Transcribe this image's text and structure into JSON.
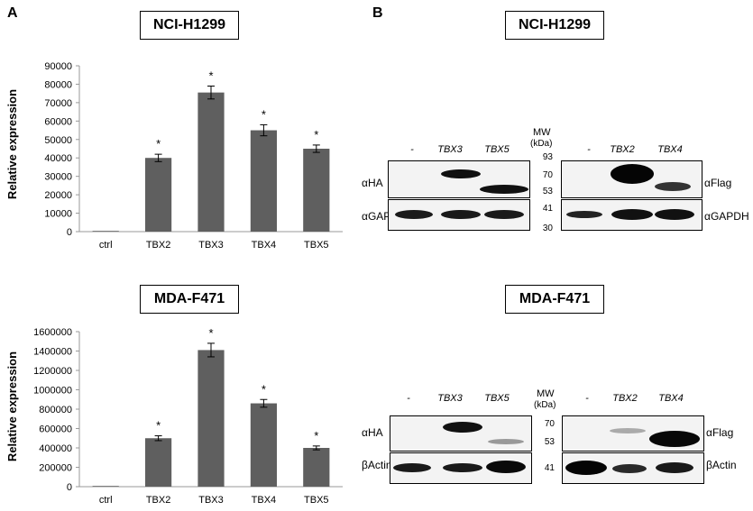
{
  "panel_a": {
    "letter": "A",
    "charts": [
      {
        "cell_line": "NCI-H1299",
        "ylabel": "Relative expression",
        "y_ticks": [
          "0",
          "10000",
          "20000",
          "30000",
          "40000",
          "50000",
          "60000",
          "70000",
          "80000",
          "90000"
        ],
        "star": "*"
      },
      {
        "cell_line": "MDA-F471",
        "ylabel": "Relative expression",
        "y_ticks": [
          "0",
          "200000",
          "400000",
          "600000",
          "800000",
          "1000000",
          "1200000",
          "1400000",
          "1600000"
        ],
        "star": "*"
      }
    ]
  },
  "chart_data": [
    {
      "type": "bar",
      "title": "NCI-H1299",
      "categories": [
        "ctrl",
        "TBX2",
        "TBX3",
        "TBX4",
        "TBX5"
      ],
      "values": [
        200,
        40000,
        75500,
        55000,
        45000
      ],
      "errors": [
        0,
        2000,
        3500,
        3000,
        2000
      ],
      "significant": [
        false,
        true,
        true,
        true,
        true
      ],
      "ylabel": "Relative expression",
      "ylim": [
        0,
        90000
      ],
      "bar_color": "#5f5f5f"
    },
    {
      "type": "bar",
      "title": "MDA-F471",
      "categories": [
        "ctrl",
        "TBX2",
        "TBX3",
        "TBX4",
        "TBX5"
      ],
      "values": [
        0,
        500000,
        1410000,
        860000,
        400000
      ],
      "errors": [
        0,
        25000,
        70000,
        40000,
        20000
      ],
      "significant": [
        false,
        true,
        true,
        true,
        true
      ],
      "ylabel": "Relative expression",
      "ylim": [
        0,
        1600000
      ],
      "bar_color": "#5f5f5f"
    }
  ],
  "panel_b": {
    "letter": "B",
    "blots": [
      {
        "cell_line": "NCI-H1299",
        "mw_header": "MW",
        "mw_unit": "(kDa)",
        "left": {
          "lanes": [
            "-",
            "TBX3",
            "TBX5"
          ],
          "top_antibody": "αHA",
          "bottom_antibody": "αGAPDH"
        },
        "mw_top": [
          "93",
          "70",
          "53"
        ],
        "mw_bottom": [
          "41",
          "30"
        ],
        "right": {
          "lanes": [
            "-",
            "TBX2",
            "TBX4"
          ],
          "top_antibody": "αFlag",
          "bottom_antibody": "αGAPDH"
        }
      },
      {
        "cell_line": "MDA-F471",
        "mw_header": "MW",
        "mw_unit": "(kDa)",
        "left": {
          "lanes": [
            "-",
            "TBX3",
            "TBX5"
          ],
          "top_antibody": "αHA",
          "bottom_antibody": "βActin"
        },
        "mw_top": [
          "70",
          "53"
        ],
        "mw_bottom": [
          "41"
        ],
        "right": {
          "lanes": [
            "-",
            "TBX2",
            "TBX4"
          ],
          "top_antibody": "αFlag",
          "bottom_antibody": "βActin"
        }
      }
    ]
  }
}
